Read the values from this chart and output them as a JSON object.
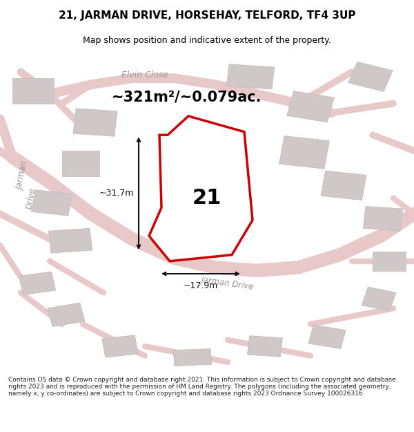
{
  "title": "21, JARMAN DRIVE, HORSEHAY, TELFORD, TF4 3UP",
  "subtitle": "Map shows position and indicative extent of the property.",
  "area_text": "~321m²/~0.079ac.",
  "label_21": "21",
  "dim_vertical": "~31.7m",
  "dim_horizontal": "~17.9m",
  "road_label_elvin": "Elvin Close",
  "road_label_jarman1": "Jarman\nDrive",
  "road_label_jarman2": "Jarman Drive",
  "footer": "Contains OS data © Crown copyright and database right 2021. This information is subject to Crown copyright and database rights 2023 and is reproduced with the permission of HM Land Registry. The polygons (including the associated geometry, namely x, y co-ordinates) are subject to Crown copyright and database rights 2023 Ordnance Survey 100026316.",
  "bg_color": "#ffffff",
  "map_bg": "#f0eaea",
  "road_color": "#e8c8c8",
  "building_color": "#d0c8c8",
  "plot_fill": "#ffffff",
  "plot_outline": "#cc0000",
  "dim_color": "#111111",
  "road_label_color": "#999999",
  "title_color": "#000000",
  "area_text_color": "#000000"
}
